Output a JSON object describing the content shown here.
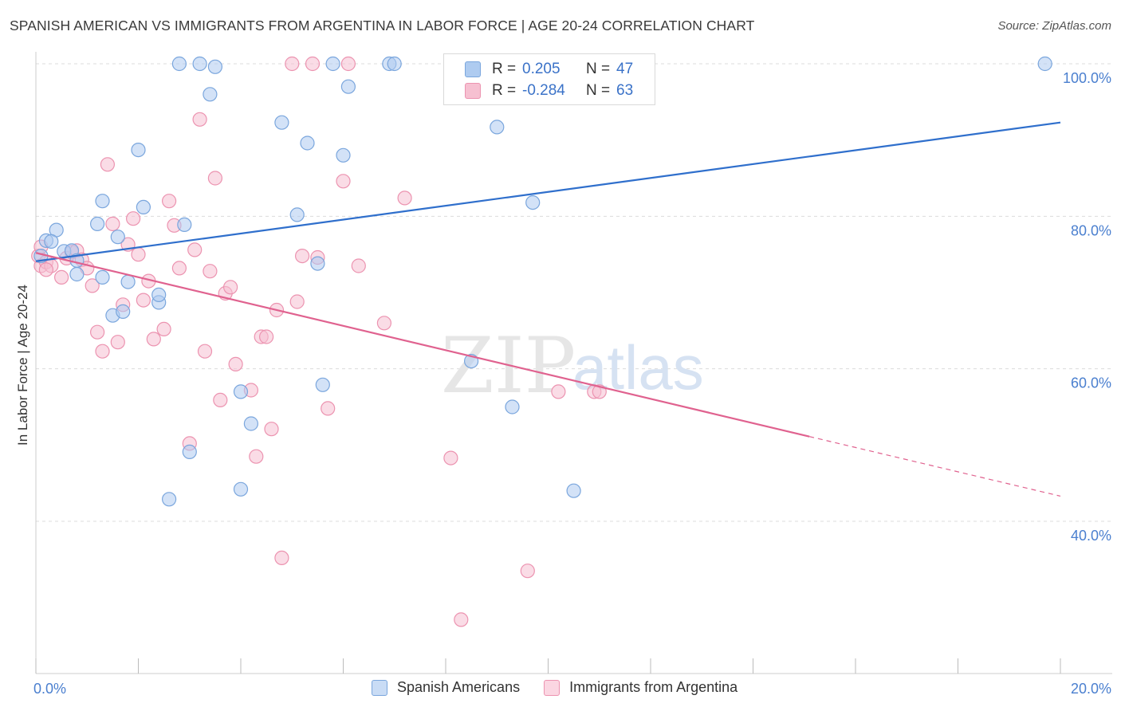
{
  "header": {
    "title": "SPANISH AMERICAN VS IMMIGRANTS FROM ARGENTINA IN LABOR FORCE | AGE 20-24 CORRELATION CHART",
    "source": "Source: ZipAtlas.com"
  },
  "legend_top": {
    "rows": [
      {
        "r_label": "R =",
        "r_value": "0.205",
        "n_label": "N =",
        "n_value": "47"
      },
      {
        "r_label": "R =",
        "r_value": "-0.284",
        "n_label": "N =",
        "n_value": "63"
      }
    ]
  },
  "watermark": {
    "zip": "ZIP",
    "atlas": "atlas"
  },
  "colors": {
    "blue_fill": "#aecbf0",
    "blue_stroke": "#7aa6dd",
    "blue_line": "#2f6fcc",
    "pink_fill": "#f6c0d1",
    "pink_stroke": "#ec93b0",
    "pink_line": "#e0628f",
    "grid": "#dcdcdc",
    "tick_label": "#4a7fcf"
  },
  "chart_data": {
    "type": "scatter",
    "title": "SPANISH AMERICAN VS IMMIGRANTS FROM ARGENTINA IN LABOR FORCE | AGE 20-24 CORRELATION CHART",
    "xlabel": "",
    "ylabel": "In Labor Force | Age 20-24",
    "xlim": [
      0,
      20
    ],
    "ylim": [
      20,
      100
    ],
    "x_tick_labels": [
      "0.0%",
      "20.0%"
    ],
    "y_ticks": [
      40,
      60,
      80,
      100
    ],
    "y_tick_labels": [
      "40.0%",
      "60.0%",
      "80.0%",
      "100.0%"
    ],
    "grid": true,
    "series": [
      {
        "name": "Spanish Americans",
        "color": "#aecbf0",
        "trend": {
          "x0": 0,
          "y0": 74.1,
          "x1": 20,
          "y1": 92.3,
          "solid_to": 20
        },
        "points": [
          [
            0.1,
            74.8
          ],
          [
            0.2,
            76.8
          ],
          [
            0.4,
            78.2
          ],
          [
            0.55,
            75.4
          ],
          [
            0.3,
            76.7
          ],
          [
            0.7,
            75.5
          ],
          [
            0.8,
            74.2
          ],
          [
            0.8,
            72.4
          ],
          [
            1.3,
            82.0
          ],
          [
            1.2,
            79.0
          ],
          [
            1.3,
            72.0
          ],
          [
            1.6,
            77.3
          ],
          [
            1.8,
            71.4
          ],
          [
            1.5,
            67.0
          ],
          [
            1.7,
            67.5
          ],
          [
            2.0,
            88.7
          ],
          [
            2.1,
            81.2
          ],
          [
            2.4,
            68.7
          ],
          [
            2.4,
            69.7
          ],
          [
            2.9,
            78.9
          ],
          [
            2.6,
            42.9
          ],
          [
            3.0,
            49.1
          ],
          [
            2.8,
            100
          ],
          [
            3.2,
            100
          ],
          [
            3.4,
            96.0
          ],
          [
            3.5,
            99.6
          ],
          [
            4.0,
            57.0
          ],
          [
            4.0,
            44.2
          ],
          [
            4.2,
            52.8
          ],
          [
            4.8,
            92.3
          ],
          [
            5.1,
            80.2
          ],
          [
            5.3,
            89.6
          ],
          [
            5.5,
            73.8
          ],
          [
            5.6,
            57.9
          ],
          [
            5.8,
            100
          ],
          [
            6.0,
            88.0
          ],
          [
            6.1,
            97.0
          ],
          [
            6.9,
            100
          ],
          [
            7.0,
            100
          ],
          [
            8.5,
            61.0
          ],
          [
            9.0,
            91.7
          ],
          [
            9.3,
            55.0
          ],
          [
            9.5,
            100
          ],
          [
            9.6,
            100
          ],
          [
            9.7,
            81.8
          ],
          [
            10.5,
            44.0
          ],
          [
            19.7,
            100
          ]
        ]
      },
      {
        "name": "Immigrants from Argentina",
        "color": "#f6c0d1",
        "trend": {
          "x0": 0,
          "y0": 75.2,
          "x1": 20,
          "y1": 43.3,
          "solid_to": 15.1
        },
        "points": [
          [
            0.05,
            74.8
          ],
          [
            0.1,
            73.5
          ],
          [
            0.1,
            76.0
          ],
          [
            0.2,
            74.0
          ],
          [
            0.3,
            73.5
          ],
          [
            0.5,
            72.0
          ],
          [
            0.6,
            74.5
          ],
          [
            0.7,
            75.3
          ],
          [
            0.8,
            75.5
          ],
          [
            0.9,
            74.3
          ],
          [
            1.0,
            73.2
          ],
          [
            1.1,
            70.9
          ],
          [
            1.2,
            64.8
          ],
          [
            1.3,
            62.3
          ],
          [
            1.4,
            86.8
          ],
          [
            1.5,
            79.0
          ],
          [
            1.6,
            63.5
          ],
          [
            1.7,
            68.4
          ],
          [
            1.8,
            76.3
          ],
          [
            1.9,
            79.7
          ],
          [
            2.0,
            75.0
          ],
          [
            2.1,
            69.0
          ],
          [
            2.2,
            71.5
          ],
          [
            2.3,
            63.9
          ],
          [
            2.5,
            65.2
          ],
          [
            2.6,
            82.0
          ],
          [
            2.7,
            78.8
          ],
          [
            2.8,
            73.2
          ],
          [
            3.0,
            50.2
          ],
          [
            3.1,
            75.6
          ],
          [
            3.2,
            92.7
          ],
          [
            3.3,
            62.3
          ],
          [
            3.4,
            72.8
          ],
          [
            3.5,
            85.0
          ],
          [
            3.6,
            55.9
          ],
          [
            3.7,
            69.9
          ],
          [
            3.8,
            70.7
          ],
          [
            3.9,
            60.6
          ],
          [
            4.2,
            57.2
          ],
          [
            4.3,
            48.5
          ],
          [
            4.4,
            64.2
          ],
          [
            4.5,
            64.2
          ],
          [
            4.6,
            52.1
          ],
          [
            4.7,
            67.7
          ],
          [
            4.8,
            35.2
          ],
          [
            5.0,
            100
          ],
          [
            5.1,
            68.8
          ],
          [
            5.2,
            74.8
          ],
          [
            5.4,
            100
          ],
          [
            5.5,
            74.6
          ],
          [
            5.7,
            54.8
          ],
          [
            6.0,
            84.6
          ],
          [
            6.1,
            100
          ],
          [
            6.3,
            73.5
          ],
          [
            6.8,
            66.0
          ],
          [
            7.2,
            82.4
          ],
          [
            8.1,
            48.3
          ],
          [
            8.3,
            27.1
          ],
          [
            9.6,
            33.5
          ],
          [
            10.2,
            57.0
          ],
          [
            10.9,
            57.0
          ],
          [
            11.0,
            57.0
          ],
          [
            0.2,
            73.0
          ]
        ]
      }
    ]
  },
  "bottom_legend": {
    "items": [
      "Spanish Americans",
      "Immigrants from Argentina"
    ]
  }
}
